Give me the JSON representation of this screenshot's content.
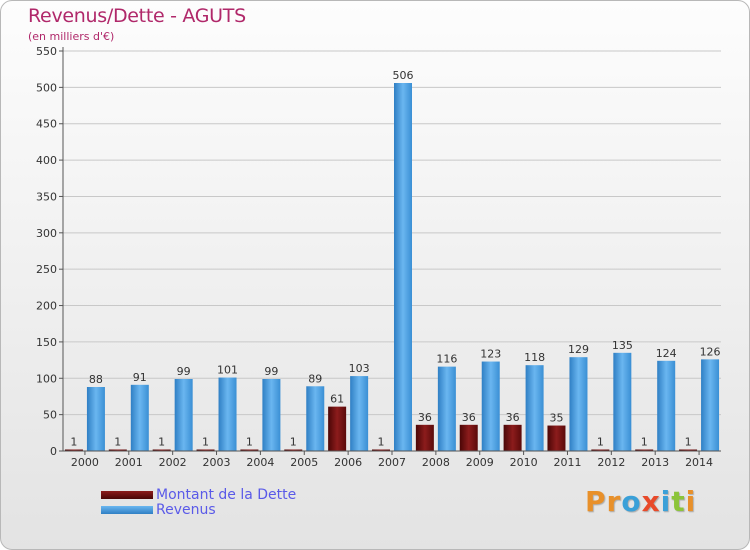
{
  "title": "Revenus/Dette - AGUTS",
  "subtitle": "(en milliers d'€)",
  "logo_text": "Proxiti",
  "colors": {
    "title": "#b0286a",
    "dette": "#6e0d0d",
    "revenus": "#4aa0e0",
    "grid": "#c8c8c8",
    "legend_text": "#5a5ae8"
  },
  "chart_data": {
    "type": "bar",
    "title": "Revenus/Dette - AGUTS",
    "subtitle": "(en milliers d'€)",
    "categories": [
      "2000",
      "2001",
      "2002",
      "2003",
      "2004",
      "2005",
      "2006",
      "2007",
      "2008",
      "2009",
      "2010",
      "2011",
      "2012",
      "2013",
      "2014"
    ],
    "series": [
      {
        "name": "Montant de la Dette",
        "color": "#6e0d0d",
        "values": [
          1,
          1,
          1,
          1,
          1,
          1,
          61,
          1,
          36,
          36,
          36,
          35,
          1,
          1,
          1
        ]
      },
      {
        "name": "Revenus",
        "color": "#4aa0e0",
        "values": [
          88,
          91,
          99,
          101,
          99,
          89,
          103,
          506,
          116,
          123,
          118,
          129,
          135,
          124,
          126
        ]
      }
    ],
    "ylim": [
      0,
      550
    ],
    "yticks": [
      0,
      50,
      100,
      150,
      200,
      250,
      300,
      350,
      400,
      450,
      500,
      550
    ],
    "grid": true,
    "legend_position": "bottom-left"
  }
}
